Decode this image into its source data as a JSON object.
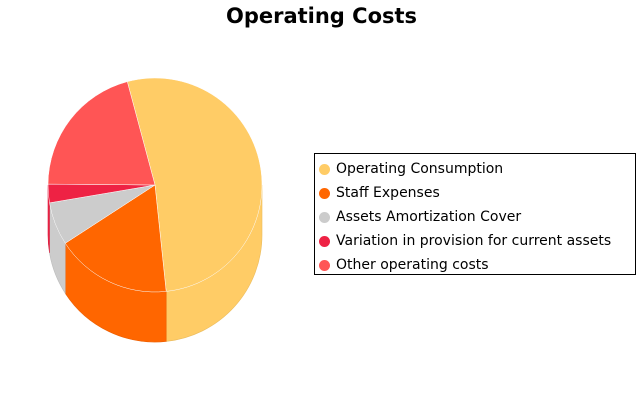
{
  "chart_data": {
    "type": "pie",
    "title": "Operating Costs",
    "legend_position": "right",
    "three_d": true,
    "slices": [
      {
        "label": "Operating Consumption",
        "value": 52.5,
        "color": "#ffcc66"
      },
      {
        "label": "Staff Expenses",
        "value": 17.5,
        "color": "#ff6600"
      },
      {
        "label": "Assets Amortization Cover",
        "value": 6.5,
        "color": "#cccccc"
      },
      {
        "label": "Variation in provision for current assets",
        "value": 2.8,
        "color": "#ee2244"
      },
      {
        "label": "Other operating costs",
        "value": 20.7,
        "color": "#ff5555"
      }
    ]
  }
}
